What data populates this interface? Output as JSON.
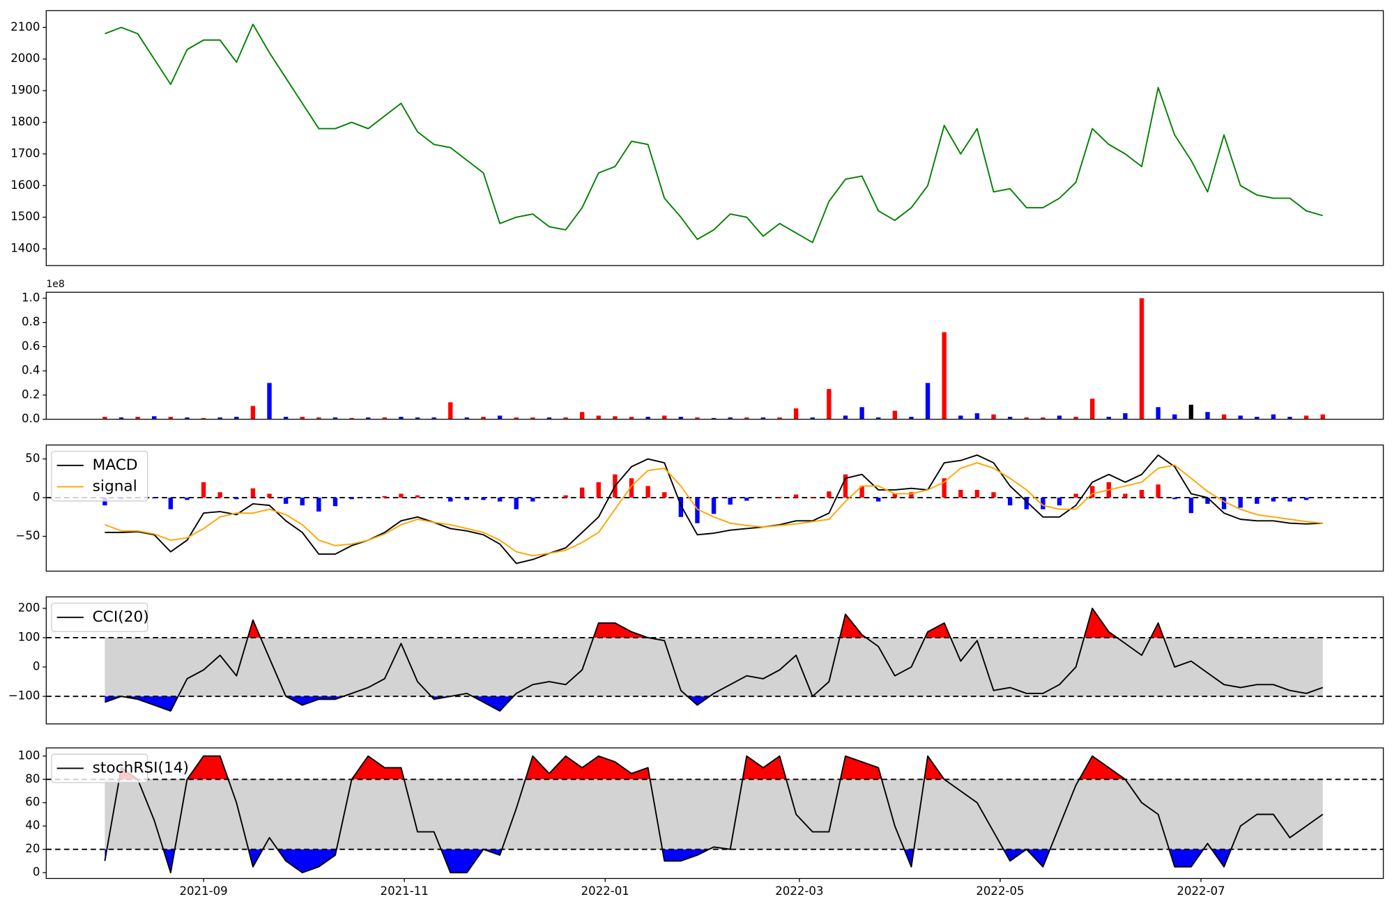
{
  "chart_data": [
    {
      "type": "line",
      "xlim": [
        14.2,
        420.4
      ],
      "ylim": [
        1347,
        2153
      ],
      "yticks": [
        1400,
        1500,
        1600,
        1700,
        1800,
        1900,
        2000,
        2100
      ],
      "x": [
        32,
        37,
        42,
        47,
        52,
        57,
        62,
        67,
        72,
        77,
        82,
        87,
        92,
        97,
        102,
        107,
        112,
        117,
        122,
        127,
        132,
        137,
        142,
        147,
        152,
        157,
        162,
        167,
        172,
        177,
        182,
        187,
        192,
        197,
        202,
        207,
        212,
        217,
        222,
        227,
        232,
        237,
        242,
        247,
        252,
        257,
        262,
        267,
        272,
        277,
        282,
        287,
        292,
        297,
        302,
        307,
        312,
        317,
        322,
        327,
        332,
        337,
        342,
        347,
        352,
        357,
        362,
        367,
        372,
        377,
        382,
        387,
        392,
        397,
        402
      ],
      "series": [
        {
          "color": "#008000",
          "values": [
            2080,
            2100,
            2080,
            2000,
            1920,
            2030,
            2060,
            2060,
            1990,
            2110,
            2020,
            1940,
            1860,
            1780,
            1780,
            1800,
            1780,
            1820,
            1860,
            1770,
            1730,
            1720,
            1680,
            1640,
            1480,
            1500,
            1510,
            1470,
            1460,
            1530,
            1640,
            1660,
            1740,
            1730,
            1560,
            1500,
            1430,
            1460,
            1510,
            1500,
            1440,
            1480,
            1450,
            1420,
            1550,
            1620,
            1630,
            1520,
            1490,
            1530,
            1600,
            1790,
            1700,
            1780,
            1580,
            1590,
            1530,
            1530,
            1560,
            1610,
            1780,
            1730,
            1700,
            1660,
            1910,
            1760,
            1680,
            1580,
            1760,
            1600,
            1570,
            1560,
            1560,
            1520,
            1505
          ]
        }
      ]
    },
    {
      "type": "bar",
      "xlim": [
        14.2,
        420.4
      ],
      "ylim": [
        0,
        1.05
      ],
      "offset_label": "1e8",
      "yticks": [
        {
          "value": 0,
          "label": "0.0"
        },
        0.2,
        0.4,
        0.6,
        0.8,
        {
          "value": 1,
          "label": "1.0"
        }
      ],
      "x": [
        32,
        37,
        42,
        47,
        52,
        57,
        62,
        67,
        72,
        77,
        82,
        87,
        92,
        97,
        102,
        107,
        112,
        117,
        122,
        127,
        132,
        137,
        142,
        147,
        152,
        157,
        162,
        167,
        172,
        177,
        182,
        187,
        192,
        197,
        202,
        207,
        212,
        217,
        222,
        227,
        232,
        237,
        242,
        247,
        252,
        257,
        262,
        267,
        272,
        277,
        282,
        287,
        292,
        297,
        302,
        307,
        312,
        317,
        322,
        327,
        332,
        337,
        342,
        347,
        352,
        357,
        362,
        367,
        372,
        377,
        382,
        387,
        392,
        397,
        402
      ],
      "values": [
        0.02,
        0.015,
        0.02,
        0.025,
        0.02,
        0.015,
        0.01,
        0.015,
        0.02,
        0.11,
        0.3,
        0.02,
        0.02,
        0.015,
        0.015,
        0.01,
        0.015,
        0.015,
        0.02,
        0.015,
        0.015,
        0.14,
        0.015,
        0.02,
        0.03,
        0.015,
        0.015,
        0.015,
        0.015,
        0.06,
        0.03,
        0.025,
        0.02,
        0.02,
        0.03,
        0.02,
        0.015,
        0.01,
        0.015,
        0.015,
        0.015,
        0.015,
        0.09,
        0.015,
        0.25,
        0.03,
        0.1,
        0.015,
        0.07,
        0.02,
        0.3,
        0.72,
        0.03,
        0.05,
        0.04,
        0.02,
        0.015,
        0.015,
        0.03,
        0.02,
        0.17,
        0.02,
        0.05,
        1.0,
        0.1,
        0.04,
        0.12,
        0.06,
        0.04,
        0.03,
        0.02,
        0.04,
        0.02,
        0.03,
        0.04
      ],
      "colors": [
        "#ff0000",
        "#0000ff",
        "#ff0000",
        "#0000ff",
        "#ff0000",
        "#0000ff",
        "#ff0000",
        "#0000ff",
        "#0000ff",
        "#ff0000",
        "#0000ff",
        "#0000ff",
        "#ff0000",
        "#ff0000",
        "#0000ff",
        "#ff0000",
        "#0000ff",
        "#ff0000",
        "#0000ff",
        "#0000ff",
        "#0000ff",
        "#ff0000",
        "#0000ff",
        "#ff0000",
        "#0000ff",
        "#ff0000",
        "#ff0000",
        "#0000ff",
        "#ff0000",
        "#ff0000",
        "#ff0000",
        "#ff0000",
        "#ff0000",
        "#0000ff",
        "#ff0000",
        "#0000ff",
        "#ff0000",
        "#0000ff",
        "#0000ff",
        "#ff0000",
        "#0000ff",
        "#ff0000",
        "#ff0000",
        "#0000ff",
        "#ff0000",
        "#0000ff",
        "#0000ff",
        "#0000ff",
        "#ff0000",
        "#0000ff",
        "#0000ff",
        "#ff0000",
        "#0000ff",
        "#0000ff",
        "#ff0000",
        "#0000ff",
        "#ff0000",
        "#ff0000",
        "#0000ff",
        "#ff0000",
        "#ff0000",
        "#0000ff",
        "#0000ff",
        "#ff0000",
        "#0000ff",
        "#0000ff",
        "#000000",
        "#0000ff",
        "#ff0000",
        "#0000ff",
        "#0000ff",
        "#0000ff",
        "#0000ff",
        "#ff0000",
        "#ff0000"
      ]
    },
    {
      "type": "macd",
      "xlim": [
        14.2,
        420.4
      ],
      "ylim": [
        -95,
        68
      ],
      "yticks": [
        {
          "value": -50,
          "label": "−50"
        },
        0,
        50
      ],
      "hline": 0,
      "legend": "upper left",
      "x": [
        32,
        37,
        42,
        47,
        52,
        57,
        62,
        67,
        72,
        77,
        82,
        87,
        92,
        97,
        102,
        107,
        112,
        117,
        122,
        127,
        132,
        137,
        142,
        147,
        152,
        157,
        162,
        167,
        172,
        177,
        182,
        187,
        192,
        197,
        202,
        207,
        212,
        217,
        222,
        227,
        232,
        237,
        242,
        247,
        252,
        257,
        262,
        267,
        272,
        277,
        282,
        287,
        292,
        297,
        302,
        307,
        312,
        317,
        322,
        327,
        332,
        337,
        342,
        347,
        352,
        357,
        362,
        367,
        372,
        377,
        382,
        387,
        392,
        397,
        402
      ],
      "series": [
        {
          "name": "MACD",
          "color": "#000000",
          "values": [
            -45,
            -45,
            -44,
            -48,
            -70,
            -55,
            -20,
            -18,
            -22,
            -8,
            -10,
            -30,
            -45,
            -73,
            -73,
            -62,
            -55,
            -45,
            -30,
            -25,
            -32,
            -40,
            -43,
            -48,
            -60,
            -85,
            -80,
            -72,
            -65,
            -45,
            -25,
            15,
            40,
            50,
            45,
            -10,
            -48,
            -46,
            -42,
            -40,
            -38,
            -35,
            -30,
            -30,
            -20,
            25,
            30,
            10,
            10,
            12,
            10,
            45,
            48,
            55,
            45,
            15,
            -5,
            -25,
            -25,
            -10,
            20,
            30,
            20,
            30,
            55,
            40,
            5,
            0,
            -20,
            -28,
            -30,
            -30,
            -33,
            -34,
            -33
          ]
        },
        {
          "name": "signal",
          "color": "#ffa500",
          "values": [
            -35,
            -43,
            -43,
            -47,
            -55,
            -52,
            -40,
            -25,
            -20,
            -20,
            -15,
            -22,
            -35,
            -55,
            -62,
            -60,
            -55,
            -47,
            -35,
            -28,
            -32,
            -35,
            -40,
            -45,
            -55,
            -70,
            -75,
            -72,
            -68,
            -58,
            -45,
            -15,
            15,
            35,
            38,
            15,
            -15,
            -25,
            -33,
            -36,
            -38,
            -36,
            -34,
            -31,
            -28,
            -5,
            15,
            15,
            5,
            5,
            10,
            20,
            38,
            45,
            38,
            25,
            10,
            -10,
            -15,
            -15,
            5,
            10,
            15,
            20,
            38,
            42,
            25,
            8,
            -5,
            -15,
            -22,
            -25,
            -28,
            -31,
            -33
          ]
        }
      ],
      "histogram": {
        "up_color": "#ff0000",
        "down_color": "#0000ff",
        "values": [
          -10,
          -2,
          -1,
          -1,
          -15,
          -3,
          20,
          7,
          -2,
          12,
          5,
          -8,
          -10,
          -18,
          -11,
          -2,
          0,
          2,
          5,
          3,
          0,
          -5,
          -3,
          -3,
          -5,
          -15,
          -5,
          0,
          3,
          13,
          20,
          30,
          25,
          15,
          7,
          -25,
          -33,
          -21,
          -9,
          -4,
          0,
          1,
          4,
          1,
          8,
          30,
          15,
          -5,
          5,
          7,
          0,
          25,
          10,
          10,
          7,
          -10,
          -15,
          -15,
          -10,
          5,
          15,
          20,
          5,
          10,
          17,
          -2,
          -20,
          -8,
          -15,
          -13,
          -8,
          -5,
          -5,
          -3,
          0
        ]
      }
    },
    {
      "type": "band",
      "xlim": [
        14.2,
        420.4
      ],
      "ylim": [
        -194,
        239
      ],
      "yticks": [
        {
          "value": -100,
          "label": "−100"
        },
        0,
        100,
        200
      ],
      "legend": "upper left",
      "upper": 100,
      "lower": -100,
      "band_color": "#d3d3d3",
      "upper_color": "#ff0000",
      "lower_color": "#0000ff",
      "x": [
        32,
        37,
        42,
        47,
        52,
        57,
        62,
        67,
        72,
        77,
        82,
        87,
        92,
        97,
        102,
        107,
        112,
        117,
        122,
        127,
        132,
        137,
        142,
        147,
        152,
        157,
        162,
        167,
        172,
        177,
        182,
        187,
        192,
        197,
        202,
        207,
        212,
        217,
        222,
        227,
        232,
        237,
        242,
        247,
        252,
        257,
        262,
        267,
        272,
        277,
        282,
        287,
        292,
        297,
        302,
        307,
        312,
        317,
        322,
        327,
        332,
        337,
        342,
        347,
        352,
        357,
        362,
        367,
        372,
        377,
        382,
        387,
        392,
        397,
        402
      ],
      "series": [
        {
          "name": "CCI(20)",
          "color": "#000000",
          "values": [
            -120,
            -100,
            -110,
            -130,
            -150,
            -40,
            -10,
            40,
            -30,
            160,
            30,
            -100,
            -130,
            -110,
            -110,
            -90,
            -70,
            -40,
            80,
            -50,
            -110,
            -100,
            -90,
            -120,
            -150,
            -90,
            -60,
            -50,
            -60,
            -10,
            150,
            150,
            120,
            100,
            90,
            -80,
            -130,
            -90,
            -60,
            -30,
            -40,
            -10,
            40,
            -100,
            -50,
            180,
            110,
            70,
            -30,
            0,
            120,
            150,
            20,
            90,
            -80,
            -70,
            -90,
            -90,
            -60,
            0,
            200,
            120,
            80,
            40,
            150,
            0,
            20,
            -20,
            -60,
            -70,
            -60,
            -60,
            -80,
            -90,
            -70
          ]
        }
      ]
    },
    {
      "type": "band",
      "xlim": [
        14.2,
        420.4
      ],
      "ylim": [
        -5,
        107
      ],
      "yticks": [
        0,
        20,
        40,
        60,
        80,
        100
      ],
      "legend": "upper left",
      "upper": 80,
      "lower": 20,
      "band_color": "#d3d3d3",
      "upper_color": "#ff0000",
      "lower_color": "#0000ff",
      "xticks": [
        {
          "value": 62,
          "label": "2021-09"
        },
        {
          "value": 123,
          "label": "2021-11"
        },
        {
          "value": 184,
          "label": "2022-01"
        },
        {
          "value": 243,
          "label": "2022-03"
        },
        {
          "value": 304,
          "label": "2022-05"
        },
        {
          "value": 365,
          "label": "2022-07"
        }
      ],
      "x": [
        32,
        37,
        42,
        47,
        52,
        57,
        62,
        67,
        72,
        77,
        82,
        87,
        92,
        97,
        102,
        107,
        112,
        117,
        122,
        127,
        132,
        137,
        142,
        147,
        152,
        157,
        162,
        167,
        172,
        177,
        182,
        187,
        192,
        197,
        202,
        207,
        212,
        217,
        222,
        227,
        232,
        237,
        242,
        247,
        252,
        257,
        262,
        267,
        272,
        277,
        282,
        287,
        292,
        297,
        302,
        307,
        312,
        317,
        322,
        327,
        332,
        337,
        342,
        347,
        352,
        357,
        362,
        367,
        372,
        377,
        382,
        387,
        392,
        397,
        402
      ],
      "series": [
        {
          "name": "stochRSI(14)",
          "color": "#000000",
          "values": [
            10,
            90,
            80,
            45,
            0,
            80,
            100,
            100,
            60,
            5,
            30,
            10,
            0,
            5,
            15,
            80,
            100,
            90,
            90,
            35,
            35,
            0,
            0,
            20,
            15,
            55,
            100,
            85,
            100,
            90,
            100,
            95,
            85,
            90,
            10,
            10,
            15,
            22,
            20,
            100,
            90,
            100,
            50,
            35,
            35,
            100,
            95,
            90,
            40,
            5,
            100,
            80,
            70,
            60,
            35,
            10,
            20,
            5,
            40,
            75,
            100,
            90,
            80,
            60,
            50,
            5,
            5,
            25,
            5,
            40,
            50,
            50,
            30,
            40,
            50
          ]
        }
      ]
    }
  ]
}
